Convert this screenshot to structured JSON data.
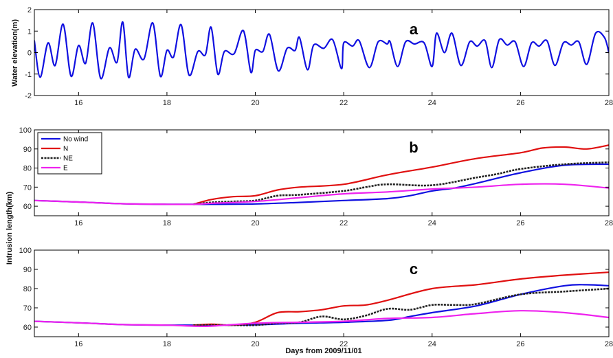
{
  "chart_data": [
    {
      "type": "line",
      "panel_label": "a",
      "ylabel": "Water elevation(m)",
      "xlim": [
        15,
        28
      ],
      "ylim": [
        -2,
        2
      ],
      "x_ticks": [
        16,
        18,
        20,
        22,
        24,
        26,
        28
      ],
      "y_ticks": [
        -2,
        -1,
        0,
        1,
        2
      ],
      "series": [
        {
          "color": "#1010e0",
          "x": [
            15.0,
            15.13,
            15.31,
            15.47,
            15.65,
            15.83,
            16.0,
            16.16,
            16.32,
            16.5,
            16.7,
            16.87,
            17.0,
            17.13,
            17.28,
            17.48,
            17.68,
            17.85,
            18.0,
            18.15,
            18.32,
            18.5,
            18.7,
            18.87,
            19.0,
            19.15,
            19.3,
            19.52,
            19.73,
            19.9,
            20.0,
            20.17,
            20.32,
            20.52,
            20.72,
            20.9,
            21.0,
            21.18,
            21.32,
            21.55,
            21.75,
            21.95,
            22.0,
            22.2,
            22.35,
            22.58,
            22.78,
            22.98,
            23.05,
            23.22,
            23.4,
            23.6,
            23.82,
            24.0,
            24.1,
            24.28,
            24.45,
            24.65,
            24.85,
            25.02,
            25.2,
            25.35,
            25.52,
            25.7,
            25.88,
            26.07,
            26.25,
            26.42,
            26.6,
            26.78,
            26.97,
            27.15,
            27.32,
            27.5,
            27.7,
            27.9,
            28.0
          ],
          "y": [
            0.55,
            -1.15,
            0.45,
            -0.6,
            1.32,
            -1.1,
            0.33,
            -0.5,
            1.38,
            -1.2,
            0.22,
            -0.45,
            1.42,
            -1.15,
            0.15,
            -0.3,
            1.38,
            -1.1,
            0.1,
            -0.2,
            1.3,
            -1.05,
            0.05,
            -0.1,
            1.18,
            -1.0,
            0.05,
            -0.05,
            1.02,
            -0.92,
            0.1,
            0.05,
            0.85,
            -0.85,
            0.2,
            0.1,
            0.7,
            -0.8,
            0.35,
            0.2,
            0.6,
            -0.75,
            0.45,
            0.3,
            0.55,
            -0.7,
            0.5,
            0.4,
            0.5,
            -0.65,
            0.5,
            0.4,
            0.45,
            -0.65,
            0.9,
            0.0,
            0.9,
            -0.6,
            0.5,
            0.3,
            0.55,
            -0.7,
            0.6,
            0.35,
            0.5,
            -0.65,
            0.45,
            0.3,
            0.55,
            -0.6,
            0.45,
            0.35,
            0.5,
            -0.55,
            0.9,
            0.7,
            0.0
          ]
        }
      ]
    },
    {
      "type": "line",
      "panel_label": "b",
      "ylabel": "Intrusion length(km)",
      "xlim": [
        15,
        28
      ],
      "ylim": [
        55,
        100
      ],
      "x_ticks": [
        16,
        18,
        20,
        22,
        24,
        26,
        28
      ],
      "y_ticks": [
        60,
        70,
        80,
        90,
        100
      ],
      "legend": {
        "placement": "top-left"
      },
      "series": [
        {
          "name": "No wind",
          "color": "#1010e0",
          "dash": "",
          "x": [
            15,
            16,
            17,
            18,
            18.6,
            19,
            20,
            21,
            22,
            23,
            23.5,
            24,
            24.5,
            25,
            26,
            27,
            28
          ],
          "y": [
            63,
            62.2,
            61.3,
            61,
            61,
            61,
            61.2,
            62,
            63,
            64,
            65.5,
            68,
            69.5,
            72,
            77.5,
            81.5,
            82
          ]
        },
        {
          "name": "N",
          "color": "#e01010",
          "dash": "",
          "x": [
            18.6,
            19,
            19.5,
            20,
            20.5,
            21,
            22,
            23,
            24,
            25,
            26,
            26.5,
            27,
            27.5,
            28
          ],
          "y": [
            61,
            63.5,
            65,
            65.5,
            68.5,
            70,
            71.5,
            76.5,
            80.5,
            85,
            88,
            90.5,
            91,
            90,
            92
          ]
        },
        {
          "name": "NE",
          "color": "#222222",
          "dash": "3,1.5",
          "x": [
            18.6,
            19,
            19.5,
            20,
            20.5,
            21,
            22,
            22.5,
            23,
            24,
            25,
            25.5,
            26,
            27,
            28
          ],
          "y": [
            61,
            62,
            62.5,
            63,
            65.5,
            66,
            68,
            70,
            71.5,
            71,
            75,
            77,
            79.5,
            82,
            83
          ]
        },
        {
          "name": "E",
          "color": "#ee22ee",
          "dash": "",
          "x": [
            15,
            16,
            17,
            18,
            18.6,
            19,
            20,
            21,
            22,
            23,
            24,
            25,
            26,
            27,
            28
          ],
          "y": [
            63,
            62.2,
            61.3,
            61,
            61,
            61.5,
            62.5,
            64.5,
            66.5,
            67.5,
            69,
            70,
            71.5,
            71.5,
            69.5
          ]
        }
      ]
    },
    {
      "type": "line",
      "panel_label": "c",
      "xlabel": "Days from 2009/11/01",
      "xlim": [
        15,
        28
      ],
      "ylim": [
        55,
        100
      ],
      "x_ticks": [
        16,
        18,
        20,
        22,
        24,
        26,
        28
      ],
      "y_ticks": [
        60,
        70,
        80,
        90,
        100
      ],
      "series": [
        {
          "name": "No wind",
          "color": "#1010e0",
          "dash": "",
          "x": [
            15,
            16,
            17,
            18,
            18.6,
            19,
            20,
            21,
            22,
            23,
            23.5,
            24,
            25,
            26,
            27,
            27.5,
            28
          ],
          "y": [
            63,
            62.2,
            61.3,
            61,
            61,
            61,
            61.2,
            62,
            62.5,
            63.5,
            65.5,
            67.5,
            71,
            77,
            81.5,
            82,
            81.5
          ]
        },
        {
          "name": "N",
          "color": "#e01010",
          "dash": "",
          "x": [
            18.6,
            19,
            19.5,
            20,
            20.5,
            21,
            21.5,
            22,
            22.5,
            23,
            24,
            25,
            26,
            27,
            28
          ],
          "y": [
            61,
            61.5,
            61,
            62.5,
            67.5,
            68,
            69,
            71,
            71.5,
            74,
            80,
            82,
            85,
            87,
            88.5
          ]
        },
        {
          "name": "NE",
          "color": "#222222",
          "dash": "3,1.5",
          "x": [
            18.6,
            19,
            19.5,
            20,
            20.5,
            21,
            21.5,
            22,
            22.5,
            23,
            23.5,
            24,
            24.5,
            25,
            26,
            27,
            28
          ],
          "y": [
            61,
            61,
            61,
            61,
            62,
            62.5,
            65.5,
            64,
            66,
            69.5,
            69,
            71.5,
            71.5,
            72,
            77,
            78.5,
            80
          ]
        },
        {
          "name": "E",
          "color": "#ee22ee",
          "dash": "",
          "x": [
            15,
            16,
            17,
            18,
            18.6,
            19,
            20,
            21,
            22,
            23,
            24,
            25,
            26,
            27,
            28
          ],
          "y": [
            63,
            62.2,
            61.3,
            61,
            60.5,
            60.5,
            62,
            62.5,
            63,
            64.5,
            65,
            67,
            68.5,
            67.5,
            65
          ]
        }
      ]
    }
  ]
}
